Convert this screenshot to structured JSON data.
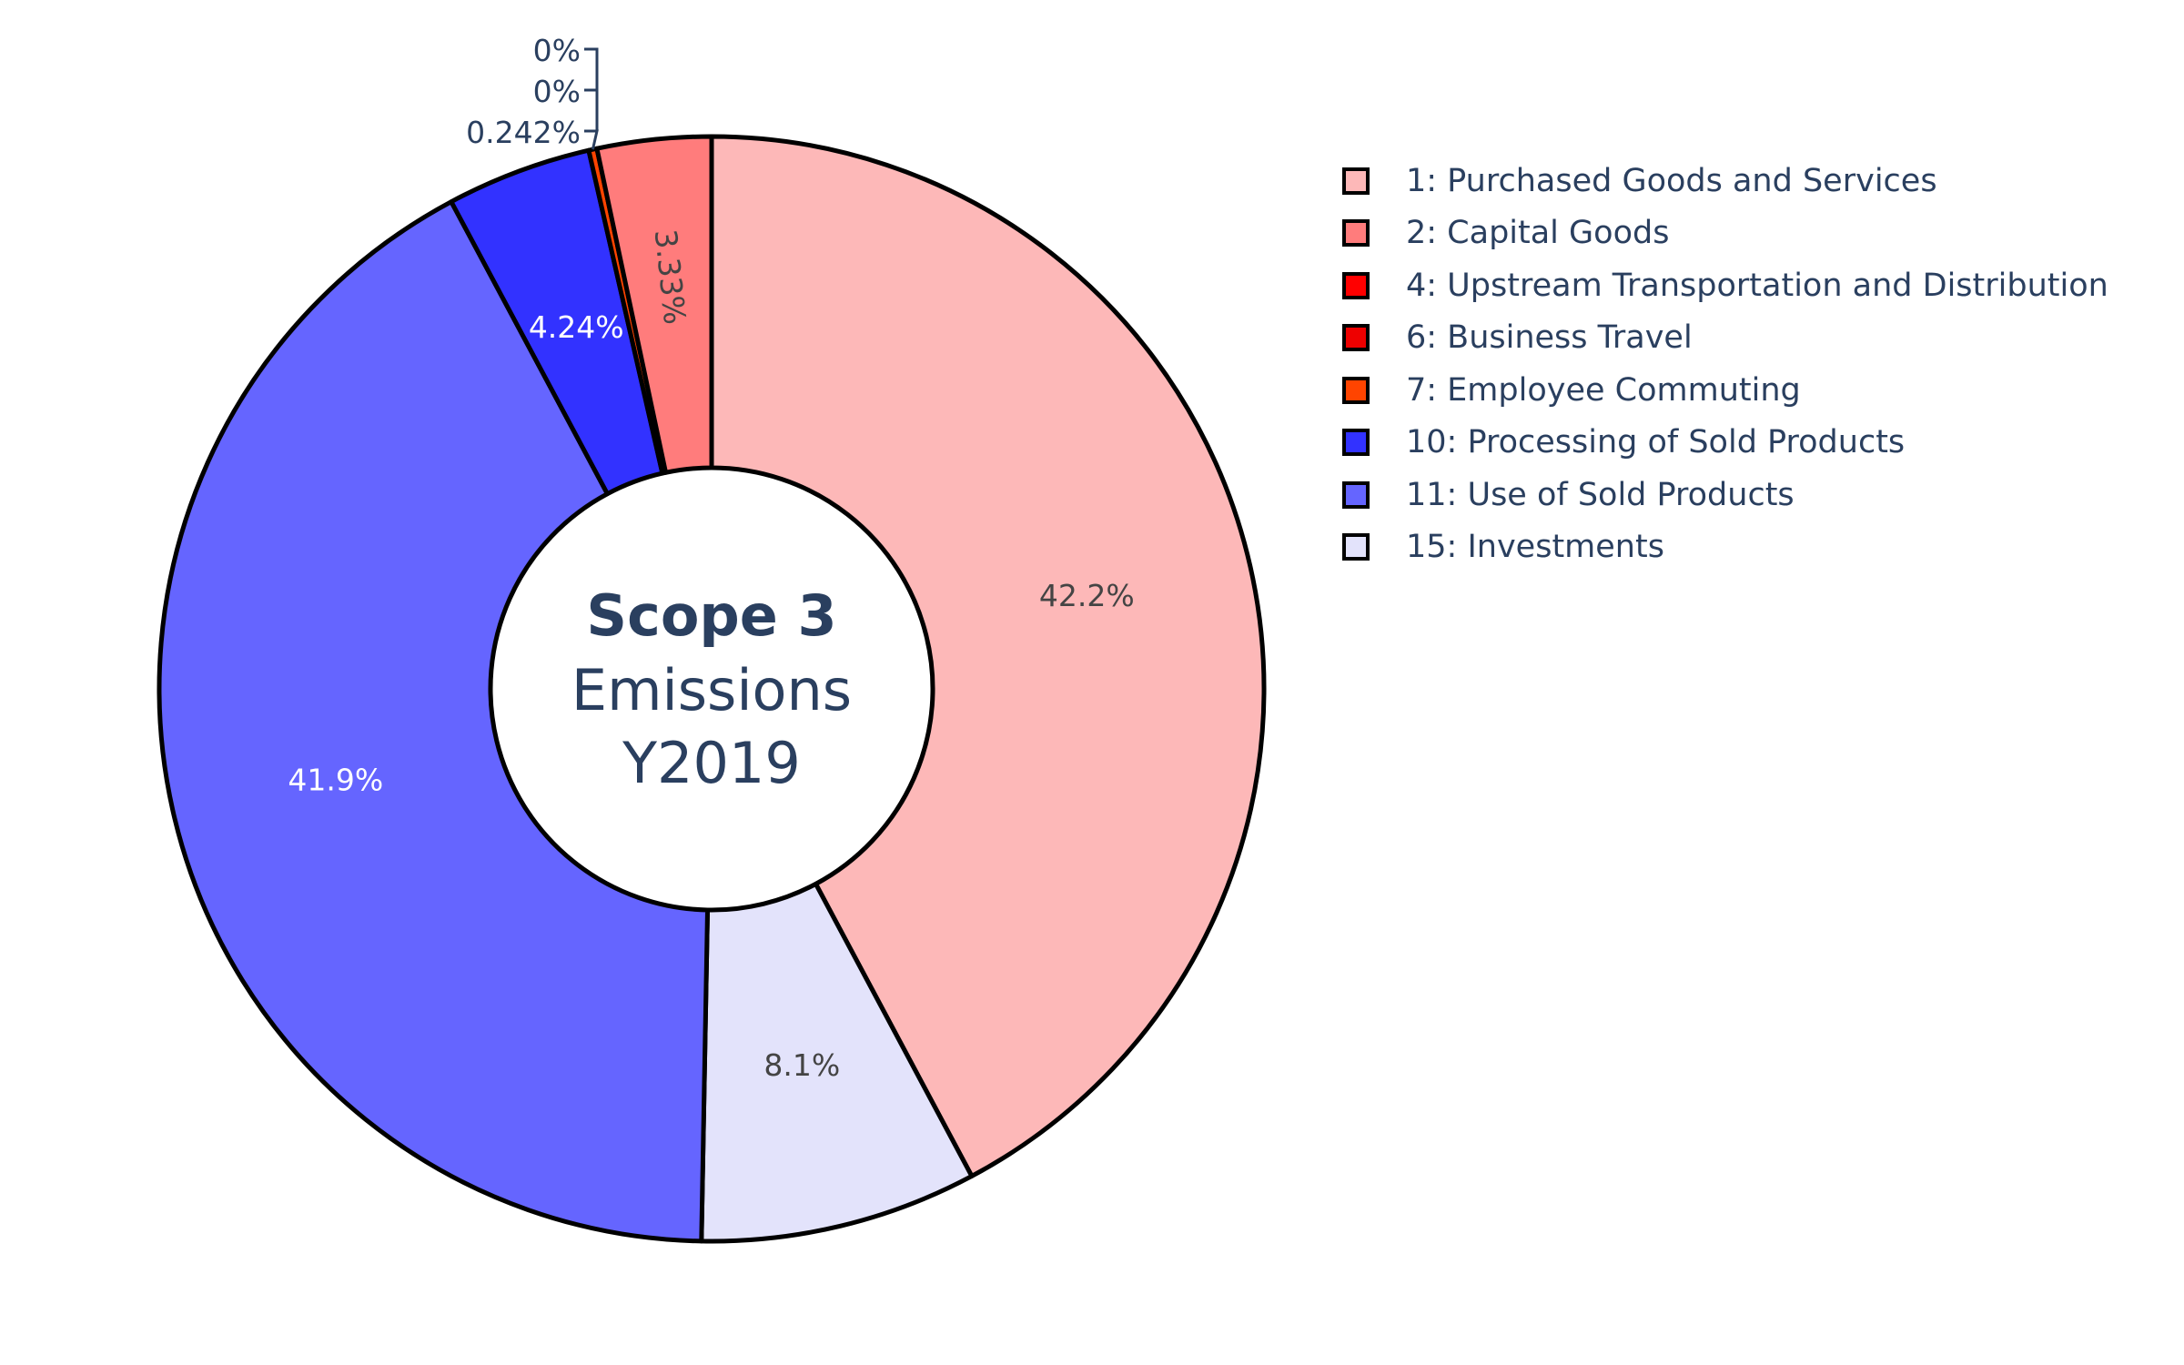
{
  "chart_data": {
    "type": "pie",
    "hole": true,
    "center_text": {
      "title": "Scope 3",
      "line2": "Emissions",
      "line3": "Y2019"
    },
    "legend_position": "right",
    "slices": [
      {
        "label": "1: Purchased Goods and Services",
        "value": 42.2,
        "text": "42.2%",
        "color": "#fdb8b8",
        "text_color": "#444444",
        "text_pos": "inside"
      },
      {
        "label": "15: Investments",
        "value": 8.1,
        "text": "8.1%",
        "color": "#e3e3fb",
        "text_color": "#444444",
        "text_pos": "inside"
      },
      {
        "label": "11: Use of Sold Products",
        "value": 41.9,
        "text": "41.9%",
        "color": "#6565ff",
        "text_color": "#ffffff",
        "text_pos": "inside"
      },
      {
        "label": "10: Processing of Sold Products",
        "value": 4.24,
        "text": "4.24%",
        "color": "#3232ff",
        "text_color": "#ffffff",
        "text_pos": "inside"
      },
      {
        "label": "7: Employee Commuting",
        "value": 0.242,
        "text": "0.242%",
        "color": "#ff4400",
        "text_color": "#2a3f5f",
        "text_pos": "outside"
      },
      {
        "label": "6: Business Travel",
        "value": 0,
        "text": "0%",
        "color": "#ee0000",
        "text_color": "#2a3f5f",
        "text_pos": "outside"
      },
      {
        "label": "4: Upstream Transportation and Distribution",
        "value": 0,
        "text": "0%",
        "color": "#ff0000",
        "text_color": "#2a3f5f",
        "text_pos": "outside"
      },
      {
        "label": "2: Capital Goods",
        "value": 3.33,
        "text": "3.33%",
        "color": "#ff7c7c",
        "text_color": "#444444",
        "text_pos": "inside-radial"
      }
    ],
    "legend": [
      {
        "label": "1: Purchased Goods and Services",
        "color": "#fdb8b8"
      },
      {
        "label": "2: Capital Goods",
        "color": "#ff7c7c"
      },
      {
        "label": "4: Upstream Transportation and Distribution",
        "color": "#ff0000"
      },
      {
        "label": "6: Business Travel",
        "color": "#ee0000"
      },
      {
        "label": "7: Employee Commuting",
        "color": "#ff4400"
      },
      {
        "label": "10: Processing of Sold Products",
        "color": "#3232ff"
      },
      {
        "label": "11: Use of Sold Products",
        "color": "#6565ff"
      },
      {
        "label": "15: Investments",
        "color": "#e3e3fb"
      }
    ]
  }
}
